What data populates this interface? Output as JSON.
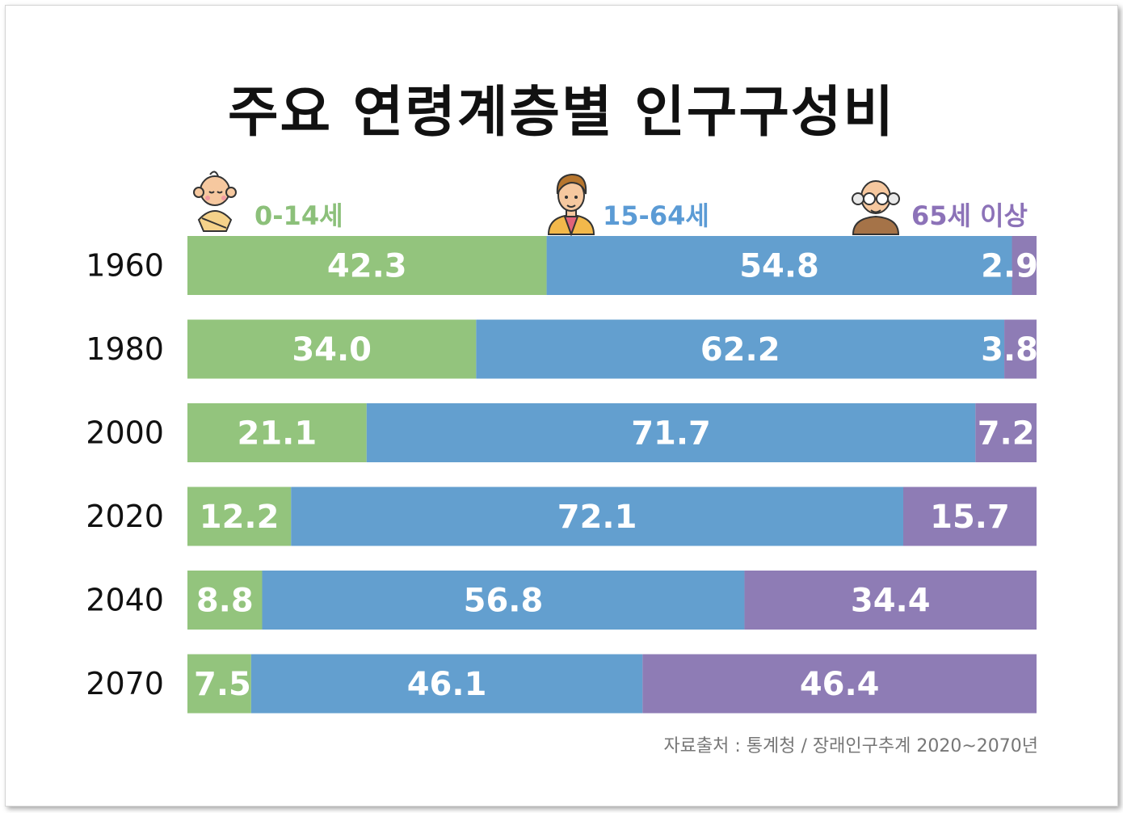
{
  "title": "주요 연령계층별 인구구성비",
  "source": "자료출처 : 통계청 / 장래인구추계 2020~2070년",
  "colors": {
    "green": "#93c47d",
    "blue": "#639fcf",
    "purple": "#8e7cb5",
    "label_green": "#8cc07a",
    "label_blue": "#5b9bd5",
    "label_purple": "#8c72b8"
  },
  "legend_icons": [
    "baby-icon",
    "young-man-icon",
    "elderly-man-icon"
  ],
  "chart_data": {
    "type": "bar",
    "orientation": "horizontal",
    "stacked": true,
    "title": "주요 연령계층별 인구구성비",
    "categories": [
      "1960",
      "1980",
      "2000",
      "2020",
      "2040",
      "2070"
    ],
    "series": [
      {
        "name": "0-14세",
        "values": [
          42.3,
          34.0,
          21.1,
          12.2,
          8.8,
          7.5
        ],
        "labels": [
          "42.3",
          "34.0",
          "21.1",
          "12.2",
          "8.8",
          "7.5"
        ]
      },
      {
        "name": "15-64세",
        "values": [
          54.8,
          62.2,
          71.7,
          72.1,
          56.8,
          46.1
        ],
        "labels": [
          "54.8",
          "62.2",
          "71.7",
          "72.1",
          "56.8",
          "46.1"
        ]
      },
      {
        "name": "65세 이상",
        "values": [
          2.9,
          3.8,
          7.2,
          15.7,
          34.4,
          46.4
        ],
        "labels": [
          "2.9",
          "3.8",
          "7.2",
          "15.7",
          "34.4",
          "46.4"
        ]
      }
    ],
    "xlim": [
      0,
      100
    ],
    "grid": false,
    "legend_position": "top"
  }
}
